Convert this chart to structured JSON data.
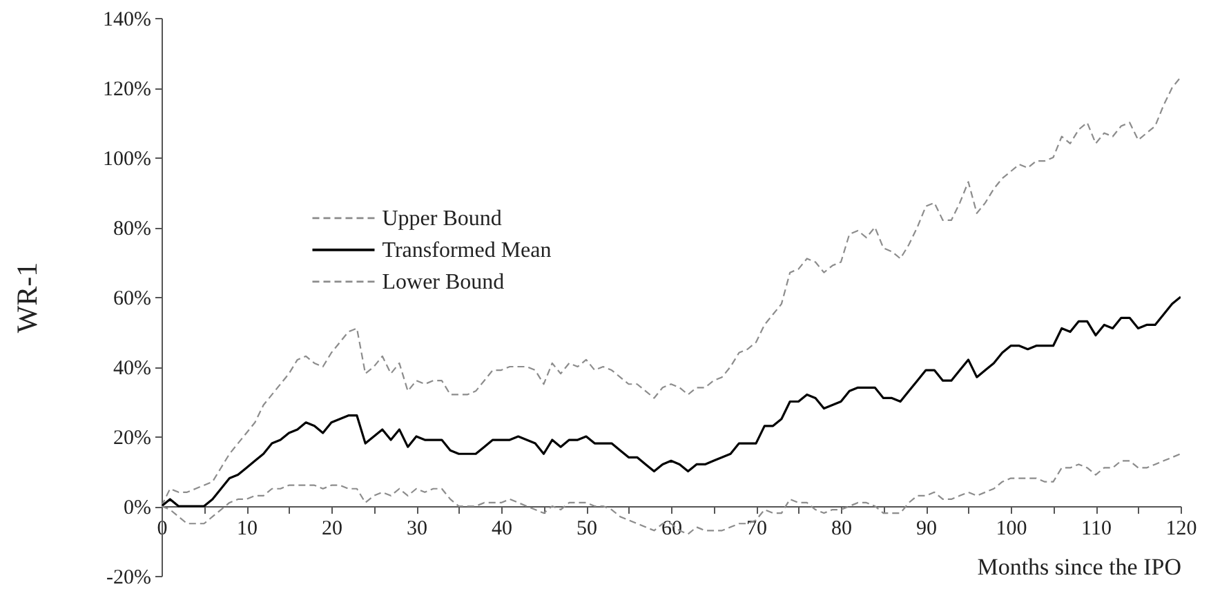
{
  "chart_data": {
    "type": "line",
    "xlabel": "Months since the IPO",
    "ylabel": "WR-1",
    "x": [
      0,
      1,
      2,
      3,
      4,
      5,
      6,
      7,
      8,
      9,
      10,
      11,
      12,
      13,
      14,
      15,
      16,
      17,
      18,
      19,
      20,
      21,
      22,
      23,
      24,
      25,
      26,
      27,
      28,
      29,
      30,
      31,
      32,
      33,
      34,
      35,
      36,
      37,
      38,
      39,
      40,
      41,
      42,
      43,
      44,
      45,
      46,
      47,
      48,
      49,
      50,
      51,
      52,
      53,
      54,
      55,
      56,
      57,
      58,
      59,
      60,
      61,
      62,
      63,
      64,
      65,
      66,
      67,
      68,
      69,
      70,
      71,
      72,
      73,
      74,
      75,
      76,
      77,
      78,
      79,
      80,
      81,
      82,
      83,
      84,
      85,
      86,
      87,
      88,
      89,
      90,
      91,
      92,
      93,
      94,
      95,
      96,
      97,
      98,
      99,
      100,
      101,
      102,
      103,
      104,
      105,
      106,
      107,
      108,
      109,
      110,
      111,
      112,
      113,
      114,
      115,
      116,
      117,
      118,
      119,
      120
    ],
    "series": [
      {
        "name": "Upper Bound",
        "color": "#8c8c8c",
        "line_style": "dashed",
        "values": [
          0,
          5,
          4,
          4,
          5,
          6,
          7,
          11,
          15,
          18,
          21,
          24,
          29,
          32,
          35,
          38,
          42,
          43,
          41,
          40,
          44,
          47,
          50,
          51,
          38,
          40,
          43,
          38,
          41,
          33,
          36,
          35,
          36,
          36,
          32,
          32,
          32,
          33,
          36,
          39,
          39,
          40,
          40,
          40,
          39,
          35,
          41,
          38,
          41,
          40,
          42,
          39,
          40,
          39,
          37,
          35,
          35,
          33,
          31,
          34,
          35,
          34,
          32,
          34,
          34,
          36,
          37,
          40,
          44,
          45,
          47,
          52,
          55,
          58,
          67,
          68,
          71,
          70,
          67,
          69,
          70,
          78,
          79,
          77,
          80,
          74,
          73,
          71,
          75,
          80,
          86,
          87,
          82,
          82,
          87,
          93,
          84,
          87,
          91,
          94,
          96,
          98,
          97,
          99,
          99,
          100,
          106,
          104,
          108,
          110,
          104,
          107,
          106,
          109,
          110,
          105,
          107,
          109,
          115,
          120,
          123
        ]
      },
      {
        "name": "Transformed Mean",
        "color": "#000000",
        "line_style": "solid",
        "values": [
          0,
          2,
          0,
          0,
          0,
          0,
          2,
          5,
          8,
          9,
          11,
          13,
          15,
          18,
          19,
          21,
          22,
          24,
          23,
          21,
          24,
          25,
          26,
          26,
          18,
          20,
          22,
          19,
          22,
          17,
          20,
          19,
          19,
          19,
          16,
          15,
          15,
          15,
          17,
          19,
          19,
          19,
          20,
          19,
          18,
          15,
          19,
          17,
          19,
          19,
          20,
          18,
          18,
          18,
          16,
          14,
          14,
          12,
          10,
          12,
          13,
          12,
          10,
          12,
          12,
          13,
          14,
          15,
          18,
          18,
          18,
          23,
          23,
          25,
          30,
          30,
          32,
          31,
          28,
          29,
          30,
          33,
          34,
          34,
          34,
          31,
          31,
          30,
          33,
          36,
          39,
          39,
          36,
          36,
          39,
          42,
          37,
          39,
          41,
          44,
          46,
          46,
          45,
          46,
          46,
          46,
          51,
          50,
          53,
          53,
          49,
          52,
          51,
          54,
          54,
          51,
          52,
          52,
          55,
          58,
          60
        ]
      },
      {
        "name": "Lower Bound",
        "color": "#8c8c8c",
        "line_style": "dashed",
        "values": [
          0,
          -1,
          -3,
          -5,
          -5,
          -5,
          -3,
          -1,
          1,
          2,
          2,
          3,
          3,
          5,
          5,
          6,
          6,
          6,
          6,
          5,
          6,
          6,
          5,
          5,
          1,
          3,
          4,
          3,
          5,
          3,
          5,
          4,
          5,
          5,
          2,
          0,
          0,
          0,
          1,
          1,
          1,
          2,
          1,
          0,
          -1,
          -2,
          0,
          -1,
          1,
          1,
          1,
          0,
          0,
          -1,
          -3,
          -4,
          -5,
          -6,
          -7,
          -5,
          -5,
          -7,
          -8,
          -6,
          -7,
          -7,
          -7,
          -6,
          -5,
          -5,
          -4,
          -1,
          -2,
          -2,
          2,
          1,
          1,
          -1,
          -2,
          -1,
          -1,
          0,
          1,
          1,
          0,
          -2,
          -2,
          -2,
          1,
          3,
          3,
          4,
          2,
          2,
          3,
          4,
          3,
          4,
          5,
          7,
          8,
          8,
          8,
          8,
          7,
          7,
          11,
          11,
          12,
          11,
          9,
          11,
          11,
          13,
          13,
          11,
          11,
          12,
          13,
          14,
          15
        ]
      }
    ],
    "xlim": [
      0,
      120
    ],
    "xticks": [
      0,
      {
        "value": 5,
        "label": null
      },
      10,
      {
        "value": 15,
        "label": null
      },
      20,
      {
        "value": 25,
        "label": null
      },
      30,
      {
        "value": 35,
        "label": null
      },
      40,
      {
        "value": 45,
        "label": null
      },
      50,
      {
        "value": 55,
        "label": null
      },
      60,
      {
        "value": 65,
        "label": null
      },
      70,
      {
        "value": 75,
        "label": null
      },
      80,
      {
        "value": 85,
        "label": null
      },
      90,
      {
        "value": 95,
        "label": null
      },
      100,
      {
        "value": 105,
        "label": null
      },
      110,
      {
        "value": 115,
        "label": null
      },
      120
    ],
    "ylim": [
      -20,
      140
    ],
    "yticks": [
      {
        "value": -20,
        "label": "-20%"
      },
      {
        "value": 0,
        "label": "0%"
      },
      {
        "value": 20,
        "label": "20%"
      },
      {
        "value": 40,
        "label": "40%"
      },
      {
        "value": 60,
        "label": "60%"
      },
      {
        "value": 80,
        "label": "80%"
      },
      {
        "value": 100,
        "label": "100%"
      },
      {
        "value": 120,
        "label": "120%"
      },
      {
        "value": 140,
        "label": "140%"
      }
    ],
    "legend": "top left"
  }
}
